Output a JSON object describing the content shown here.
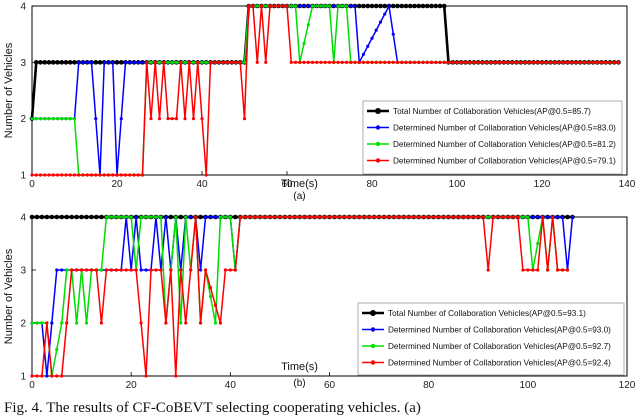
{
  "chart_data": [
    {
      "type": "line",
      "xlabel": "Time(s)",
      "ylabel": "Number of Vehicles",
      "sublabel": "(a)",
      "xlim": [
        0,
        140
      ],
      "ylim": [
        1,
        4
      ],
      "xticks": [
        0,
        20,
        40,
        60,
        80,
        100,
        120,
        140
      ],
      "yticks": [
        1,
        2,
        3,
        4
      ],
      "grid": false,
      "legend_position": "lower-right",
      "series": [
        {
          "name": "Total Number of Collaboration Vehicles(AP@0.5=85.7)",
          "color": "#000000",
          "segments": [
            [
              [
                0,
                2
              ],
              [
                1,
                3
              ],
              [
                50,
                3
              ],
              [
                51,
                4
              ],
              [
                97,
                4
              ],
              [
                98,
                3
              ],
              [
                138,
                3
              ]
            ]
          ]
        },
        {
          "name": "Determined Number of Collaboration Vehicles(AP@0.5=83.0)",
          "color": "#0000ff",
          "segments": [
            [
              [
                0,
                2
              ],
              [
                10,
                2
              ],
              [
                11,
                3
              ],
              [
                14,
                3
              ],
              [
                15,
                2
              ],
              [
                16,
                1
              ],
              [
                17,
                3
              ],
              [
                19,
                3
              ],
              [
                20,
                1
              ],
              [
                21,
                2
              ],
              [
                22,
                3
              ],
              [
                50,
                3
              ],
              [
                51,
                4
              ],
              [
                76,
                4
              ],
              [
                77,
                3
              ],
              [
                84,
                4
              ],
              [
                86,
                3
              ],
              [
                138,
                3
              ]
            ]
          ]
        },
        {
          "name": "Determined Number of Collaboration Vehicles(AP@0.5=81.2)",
          "color": "#00dd00",
          "segments": [
            [
              [
                0,
                2
              ],
              [
                10,
                2
              ],
              [
                11,
                1
              ],
              [
                26,
                1
              ],
              [
                27,
                3
              ],
              [
                50,
                3
              ],
              [
                51,
                4
              ],
              [
                62,
                4
              ],
              [
                63,
                3
              ],
              [
                66,
                4
              ],
              [
                70,
                4
              ],
              [
                71,
                3
              ],
              [
                72,
                4
              ],
              [
                74,
                4
              ],
              [
                75,
                3
              ],
              [
                138,
                3
              ]
            ]
          ]
        },
        {
          "name": "Determined Number of Collaboration Vehicles(AP@0.5=79.1)",
          "color": "#ff0000",
          "segments": [
            [
              [
                0,
                1
              ],
              [
                26,
                1
              ],
              [
                27,
                3
              ],
              [
                28,
                2
              ],
              [
                29,
                3
              ],
              [
                30,
                2
              ],
              [
                31,
                3
              ],
              [
                32,
                2
              ],
              [
                34,
                2
              ],
              [
                35,
                3
              ],
              [
                36,
                2
              ],
              [
                37,
                3
              ],
              [
                38,
                2
              ],
              [
                39,
                3
              ],
              [
                40,
                2
              ],
              [
                41,
                1
              ],
              [
                42,
                3
              ],
              [
                49,
                3
              ],
              [
                50,
                2
              ],
              [
                51,
                4
              ],
              [
                52,
                4
              ],
              [
                53,
                3
              ],
              [
                54,
                4
              ],
              [
                55,
                3
              ],
              [
                56,
                4
              ],
              [
                60,
                4
              ],
              [
                61,
                3
              ],
              [
                138,
                3
              ]
            ]
          ]
        }
      ]
    },
    {
      "type": "line",
      "xlabel": "Time(s)",
      "ylabel": "Number of Vehicles",
      "sublabel": "(b)",
      "xlim": [
        0,
        120
      ],
      "ylim": [
        1,
        4
      ],
      "xticks": [
        0,
        20,
        40,
        60,
        80,
        100,
        120
      ],
      "yticks": [
        1,
        2,
        3,
        4
      ],
      "grid": false,
      "legend_position": "lower-right",
      "series": [
        {
          "name": "Total Number of Collaboration Vehicles(AP@0.5=93.1)",
          "color": "#000000",
          "segments": [
            [
              [
                0,
                4
              ],
              [
                109,
                4
              ]
            ]
          ]
        },
        {
          "name": "Determined Number of Collaboration Vehicles(AP@0.5=93.0)",
          "color": "#0000ff",
          "segments": [
            [
              [
                0,
                2
              ],
              [
                2,
                2
              ],
              [
                3,
                1
              ],
              [
                4,
                2
              ],
              [
                5,
                3
              ],
              [
                18,
                3
              ],
              [
                19,
                4
              ],
              [
                20,
                3
              ],
              [
                21,
                4
              ],
              [
                22,
                3
              ],
              [
                24,
                3
              ],
              [
                25,
                4
              ],
              [
                26,
                3
              ],
              [
                27,
                4
              ],
              [
                28,
                3
              ],
              [
                29,
                4
              ],
              [
                30,
                3
              ],
              [
                31,
                4
              ],
              [
                33,
                4
              ],
              [
                34,
                3
              ],
              [
                35,
                4
              ],
              [
                40,
                4
              ],
              [
                41,
                3
              ],
              [
                42,
                4
              ],
              [
                107,
                4
              ],
              [
                108,
                3
              ],
              [
                109,
                4
              ]
            ]
          ]
        },
        {
          "name": "Determined Number of Collaboration Vehicles(AP@0.5=92.7)",
          "color": "#00dd00",
          "segments": [
            [
              [
                0,
                2
              ],
              [
                3,
                2
              ],
              [
                4,
                1
              ],
              [
                6,
                2
              ],
              [
                7,
                3
              ],
              [
                8,
                3
              ],
              [
                9,
                2
              ],
              [
                10,
                3
              ],
              [
                11,
                2
              ],
              [
                12,
                3
              ],
              [
                14,
                3
              ],
              [
                15,
                4
              ],
              [
                20,
                4
              ],
              [
                21,
                3
              ],
              [
                22,
                4
              ],
              [
                26,
                4
              ],
              [
                27,
                2
              ],
              [
                28,
                3
              ],
              [
                29,
                4
              ],
              [
                30,
                2
              ],
              [
                31,
                4
              ],
              [
                32,
                3
              ],
              [
                33,
                4
              ],
              [
                34,
                2
              ],
              [
                35,
                3
              ],
              [
                37,
                2
              ],
              [
                38,
                4
              ],
              [
                40,
                4
              ],
              [
                41,
                3
              ],
              [
                42,
                4
              ],
              [
                100,
                4
              ],
              [
                101,
                3
              ],
              [
                103,
                4
              ],
              [
                104,
                3
              ],
              [
                105,
                4
              ],
              [
                106,
                3
              ],
              [
                108,
                3
              ]
            ]
          ]
        },
        {
          "name": "Determined Number of Collaboration Vehicles(AP@0.5=92.4)",
          "color": "#ff0000",
          "segments": [
            [
              [
                0,
                1
              ],
              [
                2,
                1
              ],
              [
                3,
                2
              ],
              [
                4,
                1
              ],
              [
                6,
                1
              ],
              [
                7,
                2
              ],
              [
                8,
                3
              ],
              [
                13,
                3
              ],
              [
                14,
                2
              ],
              [
                15,
                3
              ],
              [
                21,
                3
              ],
              [
                22,
                2
              ],
              [
                23,
                1
              ],
              [
                24,
                3
              ],
              [
                26,
                3
              ],
              [
                27,
                2
              ],
              [
                28,
                3
              ],
              [
                29,
                1
              ],
              [
                30,
                3
              ],
              [
                31,
                2
              ],
              [
                32,
                3
              ],
              [
                33,
                4
              ],
              [
                34,
                2
              ],
              [
                35,
                3
              ],
              [
                38,
                2
              ],
              [
                39,
                3
              ],
              [
                41,
                3
              ],
              [
                42,
                4
              ],
              [
                91,
                4
              ],
              [
                92,
                3
              ],
              [
                93,
                4
              ],
              [
                98,
                4
              ],
              [
                99,
                3
              ],
              [
                102,
                3
              ],
              [
                103,
                4
              ],
              [
                104,
                3
              ],
              [
                105,
                4
              ],
              [
                106,
                3
              ],
              [
                108,
                3
              ]
            ]
          ]
        }
      ]
    }
  ],
  "caption": "Fig. 4.   The results of CF-CoBEVT selecting cooperating vehicles.  (a)"
}
